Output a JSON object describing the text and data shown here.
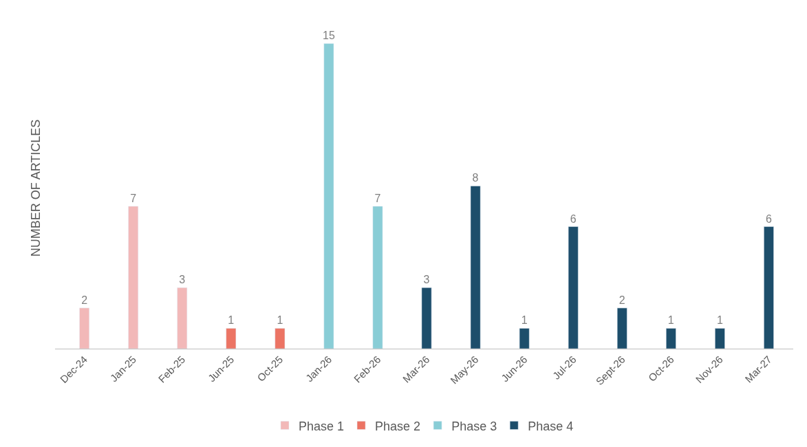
{
  "chart_data": {
    "type": "bar",
    "ylabel": "NUMBER OF ARTICLES",
    "categories": [
      "Dec-24",
      "Jan-25",
      "Feb-25",
      "Jun-25",
      "Oct-25",
      "Jan-26",
      "Feb-26",
      "Mar-26",
      "May-26",
      "Jun-26",
      "Jul-26",
      "Sept-26",
      "Oct-26",
      "Nov-26",
      "Mar-27"
    ],
    "series": [
      {
        "name": "Phase 1",
        "color": "#f2b8b8",
        "values": [
          2,
          7,
          3,
          null,
          null,
          null,
          null,
          null,
          null,
          null,
          null,
          null,
          null,
          null,
          null
        ]
      },
      {
        "name": "Phase 2",
        "color": "#ec7464",
        "values": [
          null,
          null,
          null,
          1,
          1,
          null,
          null,
          null,
          null,
          null,
          null,
          null,
          null,
          null,
          null
        ]
      },
      {
        "name": "Phase 3",
        "color": "#89cdd6",
        "values": [
          null,
          null,
          null,
          null,
          null,
          15,
          7,
          null,
          null,
          null,
          null,
          null,
          null,
          null,
          null
        ]
      },
      {
        "name": "Phase 4",
        "color": "#1d4e6b",
        "values": [
          null,
          null,
          null,
          null,
          null,
          null,
          null,
          3,
          8,
          1,
          6,
          2,
          1,
          1,
          6
        ]
      }
    ],
    "data_labels": true,
    "legend": "bottom"
  }
}
